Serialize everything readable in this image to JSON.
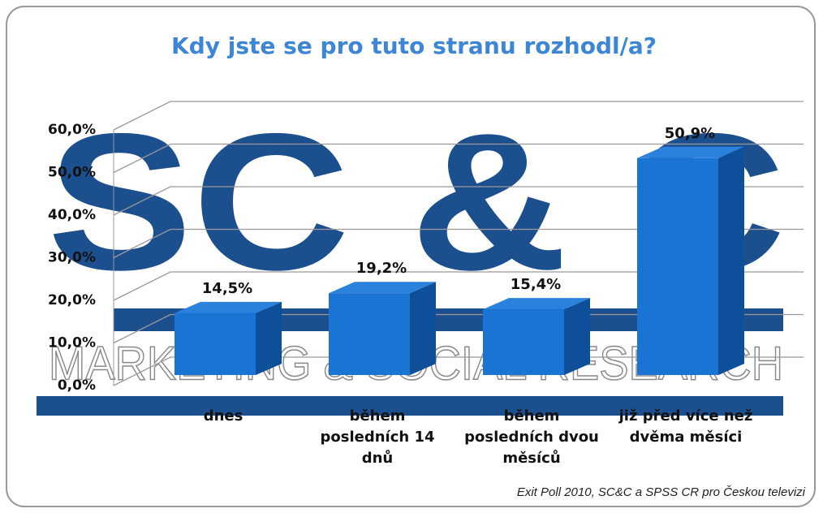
{
  "chart_data": {
    "type": "bar3d",
    "title": "Kdy jste se pro tuto stranu rozhodl/a?",
    "categories": [
      "dnes",
      "během posledních 14 dnů",
      "během posledních dvou měsíců",
      "již před více než dvěma měsíci"
    ],
    "values": [
      14.5,
      19.2,
      15.4,
      50.9
    ],
    "value_labels": [
      "14,5%",
      "19,2%",
      "15,4%",
      "50,9%"
    ],
    "color": "#1a74d4",
    "ylim": [
      0,
      60
    ],
    "yticks": [
      {
        "value": 0,
        "label": "0,0%"
      },
      {
        "value": 10,
        "label": "10,0%"
      },
      {
        "value": 20,
        "label": "20,0%"
      },
      {
        "value": 30,
        "label": "30,0%"
      },
      {
        "value": 40,
        "label": "40,0%"
      },
      {
        "value": 50,
        "label": "50,0%"
      },
      {
        "value": 60,
        "label": "60,0%"
      }
    ],
    "grid": true,
    "watermark": [
      "SC & C",
      "MARKETING & SOCIAL RESEARCH"
    ],
    "source": "Exit Poll 2010, SC&C a SPSS CR pro Českou televizi"
  }
}
